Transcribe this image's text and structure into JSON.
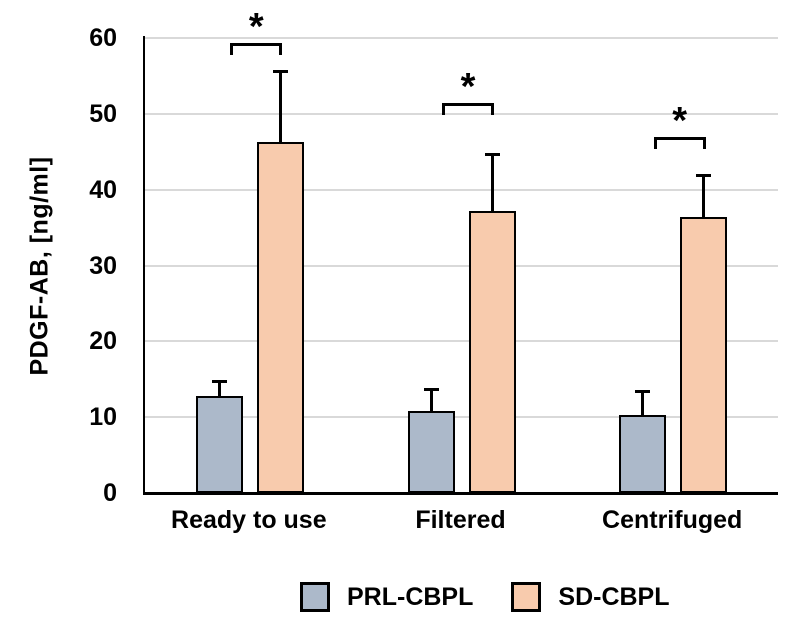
{
  "chart_data": {
    "type": "bar",
    "title": "",
    "xlabel": "",
    "ylabel": "PDGF-AB, [ng/ml]",
    "ylim": [
      0,
      60
    ],
    "yticks": [
      0,
      10,
      20,
      30,
      40,
      50,
      60
    ],
    "grid": "horizontal",
    "gridline_color": "#d9d9d9",
    "categories": [
      "Ready to use",
      "Filtered",
      "Centrifuged"
    ],
    "series": [
      {
        "name": "PRL-CBPL",
        "color": "#ACB9CA",
        "values": [
          12.8,
          10.8,
          10.3
        ],
        "errors": [
          2.0,
          2.9,
          3.1
        ]
      },
      {
        "name": "SD-CBPL",
        "color": "#F8CBAD",
        "values": [
          46.3,
          37.2,
          36.4
        ],
        "errors": [
          9.4,
          7.5,
          5.5
        ]
      }
    ],
    "significance": [
      {
        "category": "Ready to use",
        "label": "*",
        "bracket_y": 59.3
      },
      {
        "category": "Filtered",
        "label": "*",
        "bracket_y": 51.4
      },
      {
        "category": "Centrifuged",
        "label": "*",
        "bracket_y": 46.9
      }
    ],
    "legend_position": "bottom",
    "bar_border_color": "#000000",
    "error_bar_color": "#000000",
    "axis_color": "#000000"
  }
}
